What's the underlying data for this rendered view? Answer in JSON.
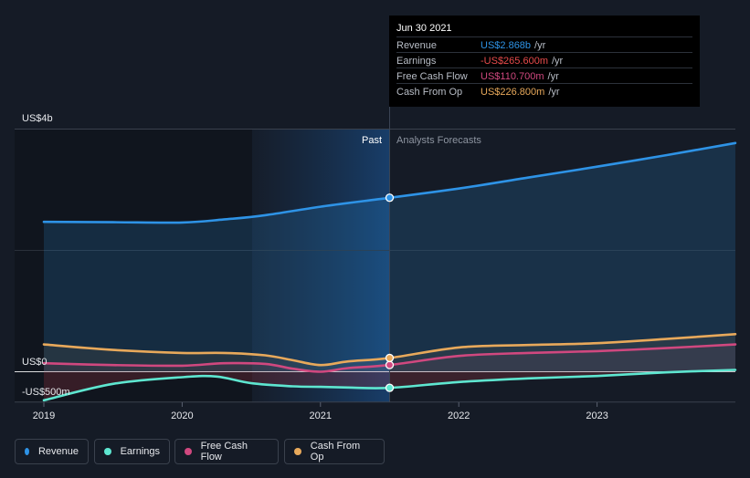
{
  "chart_data": {
    "type": "line",
    "x_ticks": [
      "2019",
      "2020",
      "2021",
      "2022",
      "2023"
    ],
    "y_axis": {
      "top_label": "US$4b",
      "zero_label": "US$0",
      "bottom_label": "-US$500m"
    },
    "regions": {
      "past": "Past",
      "forecast": "Analysts Forecasts"
    },
    "grid": true,
    "series": [
      {
        "name": "Revenue",
        "color": "#2e93e6",
        "unit": "USD b",
        "points": [
          [
            2019.0,
            2.47
          ],
          [
            2019.5,
            2.465
          ],
          [
            2020.0,
            2.46
          ],
          [
            2020.3,
            2.51
          ],
          [
            2020.6,
            2.58
          ],
          [
            2021.0,
            2.72
          ],
          [
            2021.5,
            2.868
          ],
          [
            2022.0,
            3.02
          ],
          [
            2022.5,
            3.2
          ],
          [
            2023.0,
            3.38
          ],
          [
            2023.5,
            3.57
          ],
          [
            2024.0,
            3.77
          ]
        ]
      },
      {
        "name": "Earnings",
        "color": "#5ee6d0",
        "unit": "USD b",
        "points": [
          [
            2019.0,
            -0.47
          ],
          [
            2019.5,
            -0.2
          ],
          [
            2020.0,
            -0.09
          ],
          [
            2020.25,
            -0.08
          ],
          [
            2020.5,
            -0.19
          ],
          [
            2020.8,
            -0.24
          ],
          [
            2021.0,
            -0.25
          ],
          [
            2021.2,
            -0.26
          ],
          [
            2021.5,
            -0.2656
          ],
          [
            2022.0,
            -0.17
          ],
          [
            2022.5,
            -0.11
          ],
          [
            2023.0,
            -0.07
          ],
          [
            2023.5,
            -0.01
          ],
          [
            2024.0,
            0.03
          ]
        ]
      },
      {
        "name": "Free Cash Flow",
        "color": "#d0487f",
        "unit": "USD b",
        "points": [
          [
            2019.0,
            0.14
          ],
          [
            2019.5,
            0.11
          ],
          [
            2020.0,
            0.1
          ],
          [
            2020.3,
            0.14
          ],
          [
            2020.6,
            0.13
          ],
          [
            2020.8,
            0.05
          ],
          [
            2021.0,
            0.0
          ],
          [
            2021.2,
            0.06
          ],
          [
            2021.5,
            0.1107
          ],
          [
            2022.0,
            0.26
          ],
          [
            2022.5,
            0.31
          ],
          [
            2023.0,
            0.34
          ],
          [
            2023.5,
            0.39
          ],
          [
            2024.0,
            0.45
          ]
        ]
      },
      {
        "name": "Cash From Op",
        "color": "#e8a95b",
        "unit": "USD b",
        "points": [
          [
            2019.0,
            0.45
          ],
          [
            2019.5,
            0.36
          ],
          [
            2020.0,
            0.31
          ],
          [
            2020.3,
            0.31
          ],
          [
            2020.6,
            0.27
          ],
          [
            2020.8,
            0.19
          ],
          [
            2021.0,
            0.11
          ],
          [
            2021.2,
            0.17
          ],
          [
            2021.5,
            0.2268
          ],
          [
            2022.0,
            0.4
          ],
          [
            2022.5,
            0.44
          ],
          [
            2023.0,
            0.47
          ],
          [
            2023.5,
            0.54
          ],
          [
            2024.0,
            0.62
          ]
        ]
      }
    ],
    "highlight": {
      "x": 2021.5,
      "date": "Jun 30 2021"
    }
  },
  "tooltip": {
    "date": "Jun 30 2021",
    "rows": [
      {
        "label": "Revenue",
        "value": "US$2.868b",
        "unit": "/yr",
        "color": "#2e93e6"
      },
      {
        "label": "Earnings",
        "value": "-US$265.600m",
        "unit": "/yr",
        "color": "#e84b4b"
      },
      {
        "label": "Free Cash Flow",
        "value": "US$110.700m",
        "unit": "/yr",
        "color": "#d0487f"
      },
      {
        "label": "Cash From Op",
        "value": "US$226.800m",
        "unit": "/yr",
        "color": "#e8a95b"
      }
    ]
  },
  "legend": [
    {
      "label": "Revenue",
      "color": "#2e93e6"
    },
    {
      "label": "Earnings",
      "color": "#5ee6d0"
    },
    {
      "label": "Free Cash Flow",
      "color": "#d0487f"
    },
    {
      "label": "Cash From Op",
      "color": "#e8a95b"
    }
  ]
}
